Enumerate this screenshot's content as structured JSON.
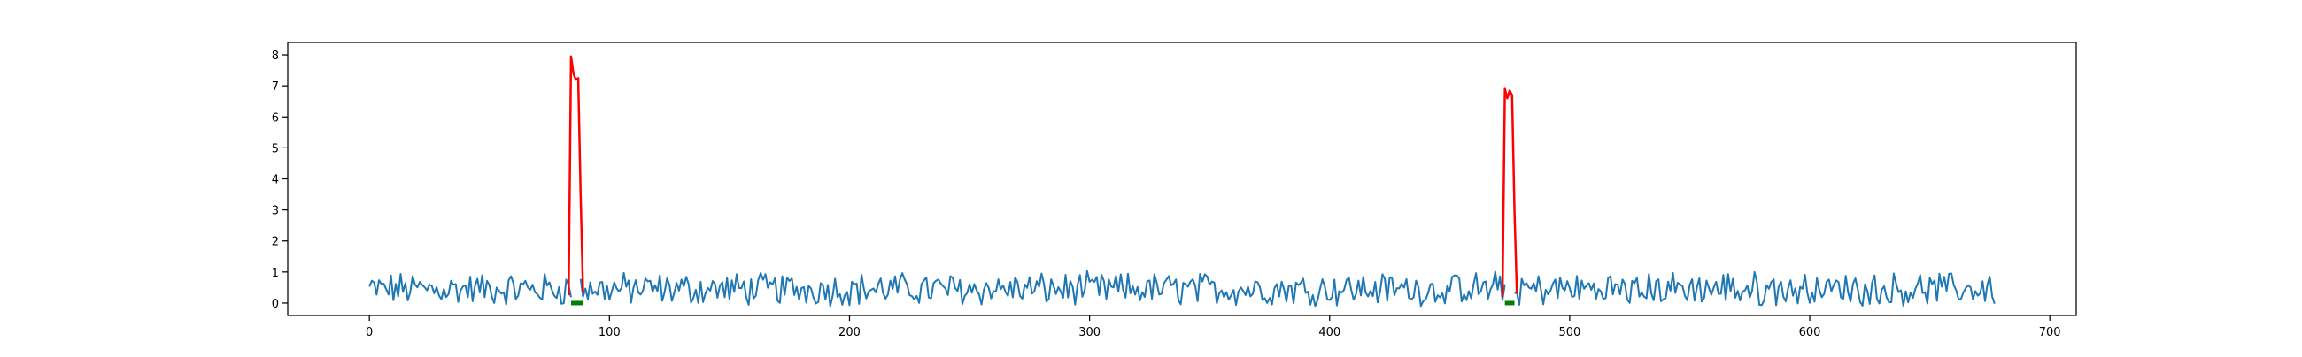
{
  "chart_data": {
    "type": "line",
    "title": "",
    "xlabel": "",
    "ylabel": "",
    "xlim": [
      -34,
      711
    ],
    "ylim": [
      -0.4,
      8.4
    ],
    "grid": false,
    "legend": "none",
    "x_ticks": [
      0,
      100,
      200,
      300,
      400,
      500,
      600,
      700
    ],
    "y_ticks": [
      0,
      1,
      2,
      3,
      4,
      5,
      6,
      7,
      8
    ],
    "series": [
      {
        "color": "#1f77b4",
        "x_start": 0,
        "x_end": 677,
        "baseline_mean": 0.45,
        "baseline_range": [
          -0.1,
          1.05
        ],
        "gaps": [
          [
            84,
            88
          ],
          [
            473,
            477
          ]
        ]
      },
      {
        "color": "#ff0000",
        "segments": [
          {
            "x": [
              83,
              84,
              85,
              86,
              87,
              88,
              89
            ],
            "y": [
              0.25,
              7.95,
              7.4,
              7.2,
              7.25,
              3.5,
              0.35
            ]
          },
          {
            "x": [
              472,
              473,
              474,
              475,
              476,
              477,
              478
            ],
            "y": [
              0.2,
              6.9,
              6.6,
              6.85,
              6.7,
              3.0,
              0.3
            ]
          }
        ]
      },
      {
        "color": "#008000",
        "markers": [
          {
            "x": [
              84,
              89
            ],
            "y": [
              0,
              0
            ]
          },
          {
            "x": [
              473,
              477
            ],
            "y": [
              0,
              0
            ]
          }
        ]
      }
    ]
  }
}
